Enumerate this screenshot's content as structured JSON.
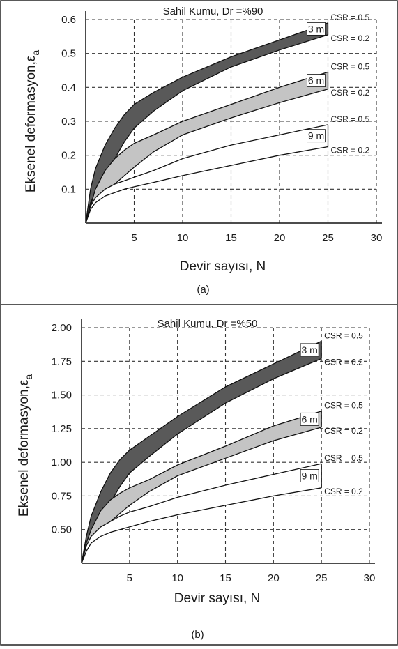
{
  "chart_data": [
    {
      "type": "area",
      "title": "Sahil Kumu, Dr =%90",
      "xlabel": "Devir sayısı, N",
      "ylabel_main": "Eksenel deformasyon,ε",
      "ylabel_sub": "a",
      "panel_label": "(a)",
      "xlim": [
        0,
        30
      ],
      "ylim": [
        0,
        0.6
      ],
      "x_ticks": [
        5,
        10,
        15,
        20,
        25,
        30
      ],
      "y_ticks": [
        0.1,
        0.2,
        0.3,
        0.4,
        0.5,
        0.6
      ],
      "y_tick_labels": [
        "0.1",
        "0.2",
        "0.3",
        "0.4",
        "0.5",
        "0.6"
      ],
      "grid": "dashed",
      "bands": [
        {
          "depth": "3 m",
          "fill": "#595959",
          "upper": {
            "label": "CSR = 0.5",
            "points": [
              [
                0,
                0
              ],
              [
                0.5,
                0.1
              ],
              [
                1,
                0.16
              ],
              [
                2,
                0.23
              ],
              [
                3,
                0.28
              ],
              [
                4,
                0.32
              ],
              [
                5,
                0.35
              ],
              [
                7,
                0.385
              ],
              [
                10,
                0.43
              ],
              [
                15,
                0.49
              ],
              [
                20,
                0.54
              ],
              [
                25,
                0.59
              ]
            ]
          },
          "lower": {
            "label": "CSR = 0.2",
            "points": [
              [
                0,
                0
              ],
              [
                0.5,
                0.06
              ],
              [
                1,
                0.09
              ],
              [
                2,
                0.14
              ],
              [
                3,
                0.19
              ],
              [
                4,
                0.24
              ],
              [
                5,
                0.28
              ],
              [
                7,
                0.33
              ],
              [
                10,
                0.39
              ],
              [
                15,
                0.46
              ],
              [
                20,
                0.51
              ],
              [
                25,
                0.555
              ]
            ]
          }
        },
        {
          "depth": "6 m",
          "fill": "#c4c4c4",
          "upper": {
            "label": "CSR = 0.5",
            "points": [
              [
                0,
                0
              ],
              [
                0.5,
                0.05
              ],
              [
                1,
                0.1
              ],
              [
                2,
                0.155
              ],
              [
                3,
                0.19
              ],
              [
                4,
                0.215
              ],
              [
                5,
                0.235
              ],
              [
                7,
                0.26
              ],
              [
                10,
                0.3
              ],
              [
                15,
                0.35
              ],
              [
                20,
                0.4
              ],
              [
                25,
                0.445
              ]
            ]
          },
          "lower": {
            "label": "CSR = 0.2",
            "points": [
              [
                0,
                0
              ],
              [
                0.5,
                0.045
              ],
              [
                1,
                0.075
              ],
              [
                2,
                0.095
              ],
              [
                3,
                0.115
              ],
              [
                4,
                0.14
              ],
              [
                5,
                0.165
              ],
              [
                7,
                0.21
              ],
              [
                10,
                0.26
              ],
              [
                15,
                0.31
              ],
              [
                20,
                0.355
              ],
              [
                25,
                0.395
              ]
            ]
          }
        },
        {
          "depth": "9 m",
          "fill": "#ffffff",
          "upper": {
            "label": "CSR = 0.5",
            "points": [
              [
                0,
                0
              ],
              [
                0.5,
                0.05
              ],
              [
                1,
                0.075
              ],
              [
                2,
                0.1
              ],
              [
                3,
                0.115
              ],
              [
                4,
                0.125
              ],
              [
                5,
                0.135
              ],
              [
                7,
                0.155
              ],
              [
                10,
                0.19
              ],
              [
                15,
                0.23
              ],
              [
                20,
                0.26
              ],
              [
                25,
                0.29
              ]
            ]
          },
          "lower": {
            "label": "CSR = 0.2",
            "points": [
              [
                0,
                0
              ],
              [
                0.5,
                0.04
              ],
              [
                1,
                0.06
              ],
              [
                2,
                0.08
              ],
              [
                3,
                0.09
              ],
              [
                4,
                0.1
              ],
              [
                5,
                0.107
              ],
              [
                7,
                0.12
              ],
              [
                10,
                0.14
              ],
              [
                15,
                0.17
              ],
              [
                20,
                0.2
              ],
              [
                25,
                0.225
              ]
            ]
          }
        }
      ]
    },
    {
      "type": "area",
      "title": "Sahil Kumu, Dr =%50",
      "xlabel": "Devir sayısı, N",
      "ylabel_main": "Eksenel deformasyon,ε",
      "ylabel_sub": "a",
      "panel_label": "(b)",
      "xlim": [
        0,
        30
      ],
      "ylim": [
        0.25,
        2.0
      ],
      "x_ticks": [
        5,
        10,
        15,
        20,
        25,
        30
      ],
      "y_ticks": [
        0.5,
        0.75,
        1.0,
        1.25,
        1.5,
        1.75,
        2.0
      ],
      "y_tick_labels": [
        "0.50",
        "0.75",
        "1.00",
        "1.25",
        "1.50",
        "1.75",
        "2.00"
      ],
      "grid": "dashed",
      "bands": [
        {
          "depth": "3 m",
          "fill": "#595959",
          "upper": {
            "label": "CSR = 0.5",
            "points": [
              [
                0,
                0.25
              ],
              [
                0.5,
                0.45
              ],
              [
                1,
                0.6
              ],
              [
                2,
                0.78
              ],
              [
                3,
                0.92
              ],
              [
                4,
                1.02
              ],
              [
                5,
                1.09
              ],
              [
                7,
                1.19
              ],
              [
                10,
                1.34
              ],
              [
                15,
                1.56
              ],
              [
                20,
                1.73
              ],
              [
                25,
                1.9
              ]
            ]
          },
          "lower": {
            "label": "CSR = 0.2",
            "points": [
              [
                0,
                0.25
              ],
              [
                0.5,
                0.38
              ],
              [
                1,
                0.46
              ],
              [
                2,
                0.58
              ],
              [
                3,
                0.7
              ],
              [
                4,
                0.82
              ],
              [
                5,
                0.92
              ],
              [
                7,
                1.04
              ],
              [
                10,
                1.21
              ],
              [
                15,
                1.44
              ],
              [
                20,
                1.62
              ],
              [
                25,
                1.77
              ]
            ]
          }
        },
        {
          "depth": "6 m",
          "fill": "#c4c4c4",
          "upper": {
            "label": "CSR = 0.5",
            "points": [
              [
                0,
                0.25
              ],
              [
                0.5,
                0.4
              ],
              [
                1,
                0.5
              ],
              [
                2,
                0.64
              ],
              [
                3,
                0.72
              ],
              [
                4,
                0.77
              ],
              [
                5,
                0.81
              ],
              [
                7,
                0.87
              ],
              [
                10,
                0.98
              ],
              [
                15,
                1.12
              ],
              [
                20,
                1.27
              ],
              [
                25,
                1.38
              ]
            ]
          },
          "lower": {
            "label": "CSR = 0.2",
            "points": [
              [
                0,
                0.25
              ],
              [
                0.5,
                0.36
              ],
              [
                1,
                0.44
              ],
              [
                2,
                0.5
              ],
              [
                3,
                0.56
              ],
              [
                4,
                0.62
              ],
              [
                5,
                0.68
              ],
              [
                7,
                0.78
              ],
              [
                10,
                0.9
              ],
              [
                15,
                1.03
              ],
              [
                20,
                1.16
              ],
              [
                25,
                1.26
              ]
            ]
          }
        },
        {
          "depth": "9 m",
          "fill": "#ffffff",
          "upper": {
            "label": "CSR = 0.5",
            "points": [
              [
                0,
                0.25
              ],
              [
                0.5,
                0.38
              ],
              [
                1,
                0.45
              ],
              [
                2,
                0.52
              ],
              [
                3,
                0.56
              ],
              [
                4,
                0.6
              ],
              [
                5,
                0.63
              ],
              [
                7,
                0.67
              ],
              [
                10,
                0.74
              ],
              [
                15,
                0.83
              ],
              [
                20,
                0.91
              ],
              [
                25,
                0.99
              ]
            ]
          },
          "lower": {
            "label": "CSR = 0.2",
            "points": [
              [
                0,
                0.25
              ],
              [
                0.5,
                0.34
              ],
              [
                1,
                0.4
              ],
              [
                2,
                0.45
              ],
              [
                3,
                0.48
              ],
              [
                4,
                0.5
              ],
              [
                5,
                0.52
              ],
              [
                7,
                0.56
              ],
              [
                10,
                0.61
              ],
              [
                15,
                0.68
              ],
              [
                20,
                0.75
              ],
              [
                25,
                0.81
              ]
            ]
          }
        }
      ]
    }
  ]
}
